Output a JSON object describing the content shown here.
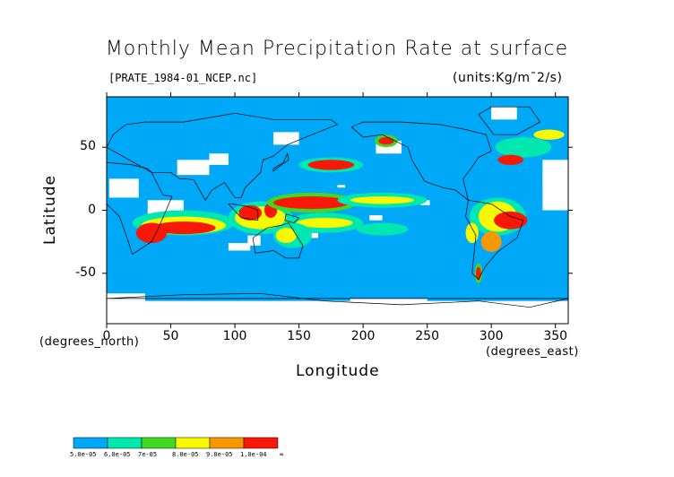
{
  "title": "Monthly Mean Precipitation Rate at surface",
  "file_label": "[PRATE_1984-01_NCEP.nc]",
  "units_label": "(units:Kg/m¯2/s)",
  "axes": {
    "x_title": "Longitude",
    "y_title": "Latitude",
    "x_unit_label": "(degrees_north)",
    "y_unit_label": "(degrees_east)",
    "x_ticks": [
      "0",
      "50",
      "100",
      "150",
      "200",
      "250",
      "300",
      "350"
    ],
    "y_ticks": [
      "50",
      "0",
      "-50"
    ],
    "x_range": [
      0,
      360
    ],
    "y_range": [
      -90,
      90
    ]
  },
  "map": {
    "background_color": "#00a8f8",
    "missing_color": "#ffffff",
    "coastline_color": "#000000"
  },
  "colorbar": {
    "colors": [
      "#00a8f8",
      "#00e8b0",
      "#40d820",
      "#f8f800",
      "#f89800",
      "#f81808"
    ],
    "labels": [
      "5.0e-05",
      "6.0e-05",
      "7e-05",
      "8.0e-05",
      "9.0e-05",
      "1.0e-04",
      "∞"
    ]
  }
}
